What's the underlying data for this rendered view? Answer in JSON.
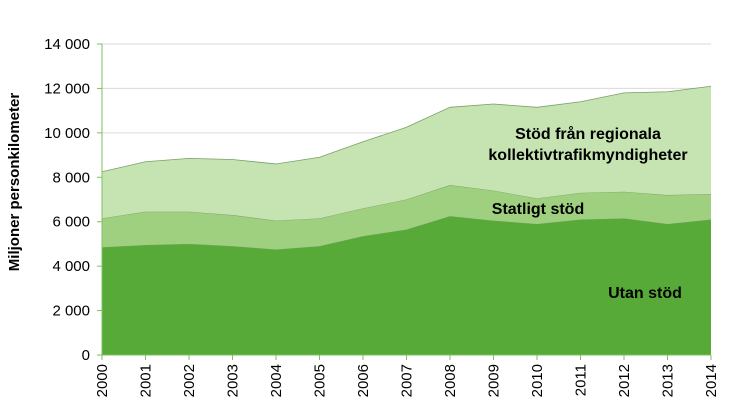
{
  "chart_data": {
    "type": "area",
    "stacked": true,
    "title": "",
    "xlabel": "",
    "ylabel": "Miljoner personkilometer",
    "ylim": [
      0,
      14000
    ],
    "y_ticks": [
      0,
      2000,
      4000,
      6000,
      8000,
      10000,
      12000,
      14000
    ],
    "y_tick_labels": [
      "0",
      "2 000",
      "4 000",
      "6 000",
      "8 000",
      "10 000",
      "12 000",
      "14 000"
    ],
    "grid": "horizontal",
    "x": [
      "2000",
      "2001",
      "2002",
      "2003",
      "2004",
      "2005",
      "2006",
      "2007",
      "2008",
      "2009",
      "2010",
      "2011",
      "2012",
      "2013",
      "2014"
    ],
    "series": [
      {
        "name": "Utan stöd",
        "color": "#57aa38",
        "values": [
          4850,
          4950,
          5000,
          4900,
          4750,
          4900,
          5350,
          5650,
          6250,
          6050,
          5900,
          6100,
          6150,
          5900,
          6100
        ]
      },
      {
        "name": "Statligt stöd",
        "color": "#9fd07f",
        "values": [
          1300,
          1500,
          1450,
          1400,
          1300,
          1250,
          1250,
          1350,
          1400,
          1350,
          1150,
          1200,
          1200,
          1300,
          1150
        ]
      },
      {
        "name": "Stöd från regionala kollektivtrafikmyndigheter",
        "color": "#c5e4b1",
        "values": [
          2100,
          2250,
          2400,
          2500,
          2550,
          2750,
          3000,
          3250,
          3500,
          3900,
          4100,
          4100,
          4450,
          4650,
          4850
        ]
      }
    ],
    "area_labels": [
      [
        "Utan stöd"
      ],
      [
        "Statligt stöd"
      ],
      [
        "Stöd från regionala",
        "kollektivtrafikmyndigheter"
      ]
    ]
  }
}
